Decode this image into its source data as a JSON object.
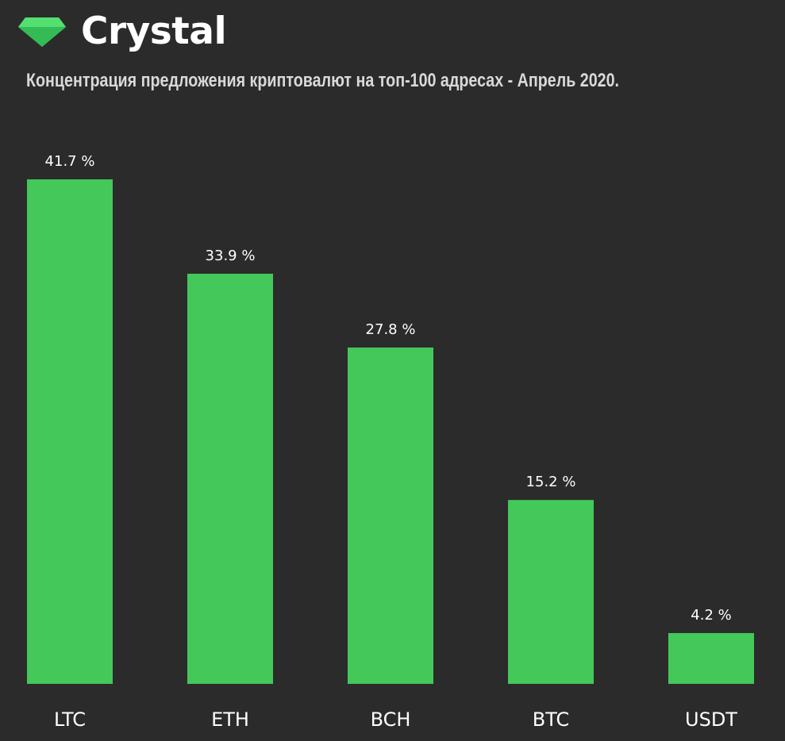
{
  "brand": {
    "name": "Crystal",
    "icon": "gem-icon",
    "color": "#3ecf5f"
  },
  "chart_data": {
    "type": "bar",
    "title": "Концентрация предложения криптовалют на топ-100 адресах - Апрель 2020.",
    "categories": [
      "LTC",
      "ETH",
      "BCH",
      "BTC",
      "USDT"
    ],
    "values": [
      41.7,
      33.9,
      27.8,
      15.2,
      4.2
    ],
    "value_labels": [
      "41.7 %",
      "33.9 %",
      "27.8 %",
      "15.2 %",
      "4.2 %"
    ],
    "xlabel": "",
    "ylabel": "",
    "grid": false,
    "legend": "none",
    "bar_color": "#44c85a",
    "background": "#2b2b2b"
  }
}
